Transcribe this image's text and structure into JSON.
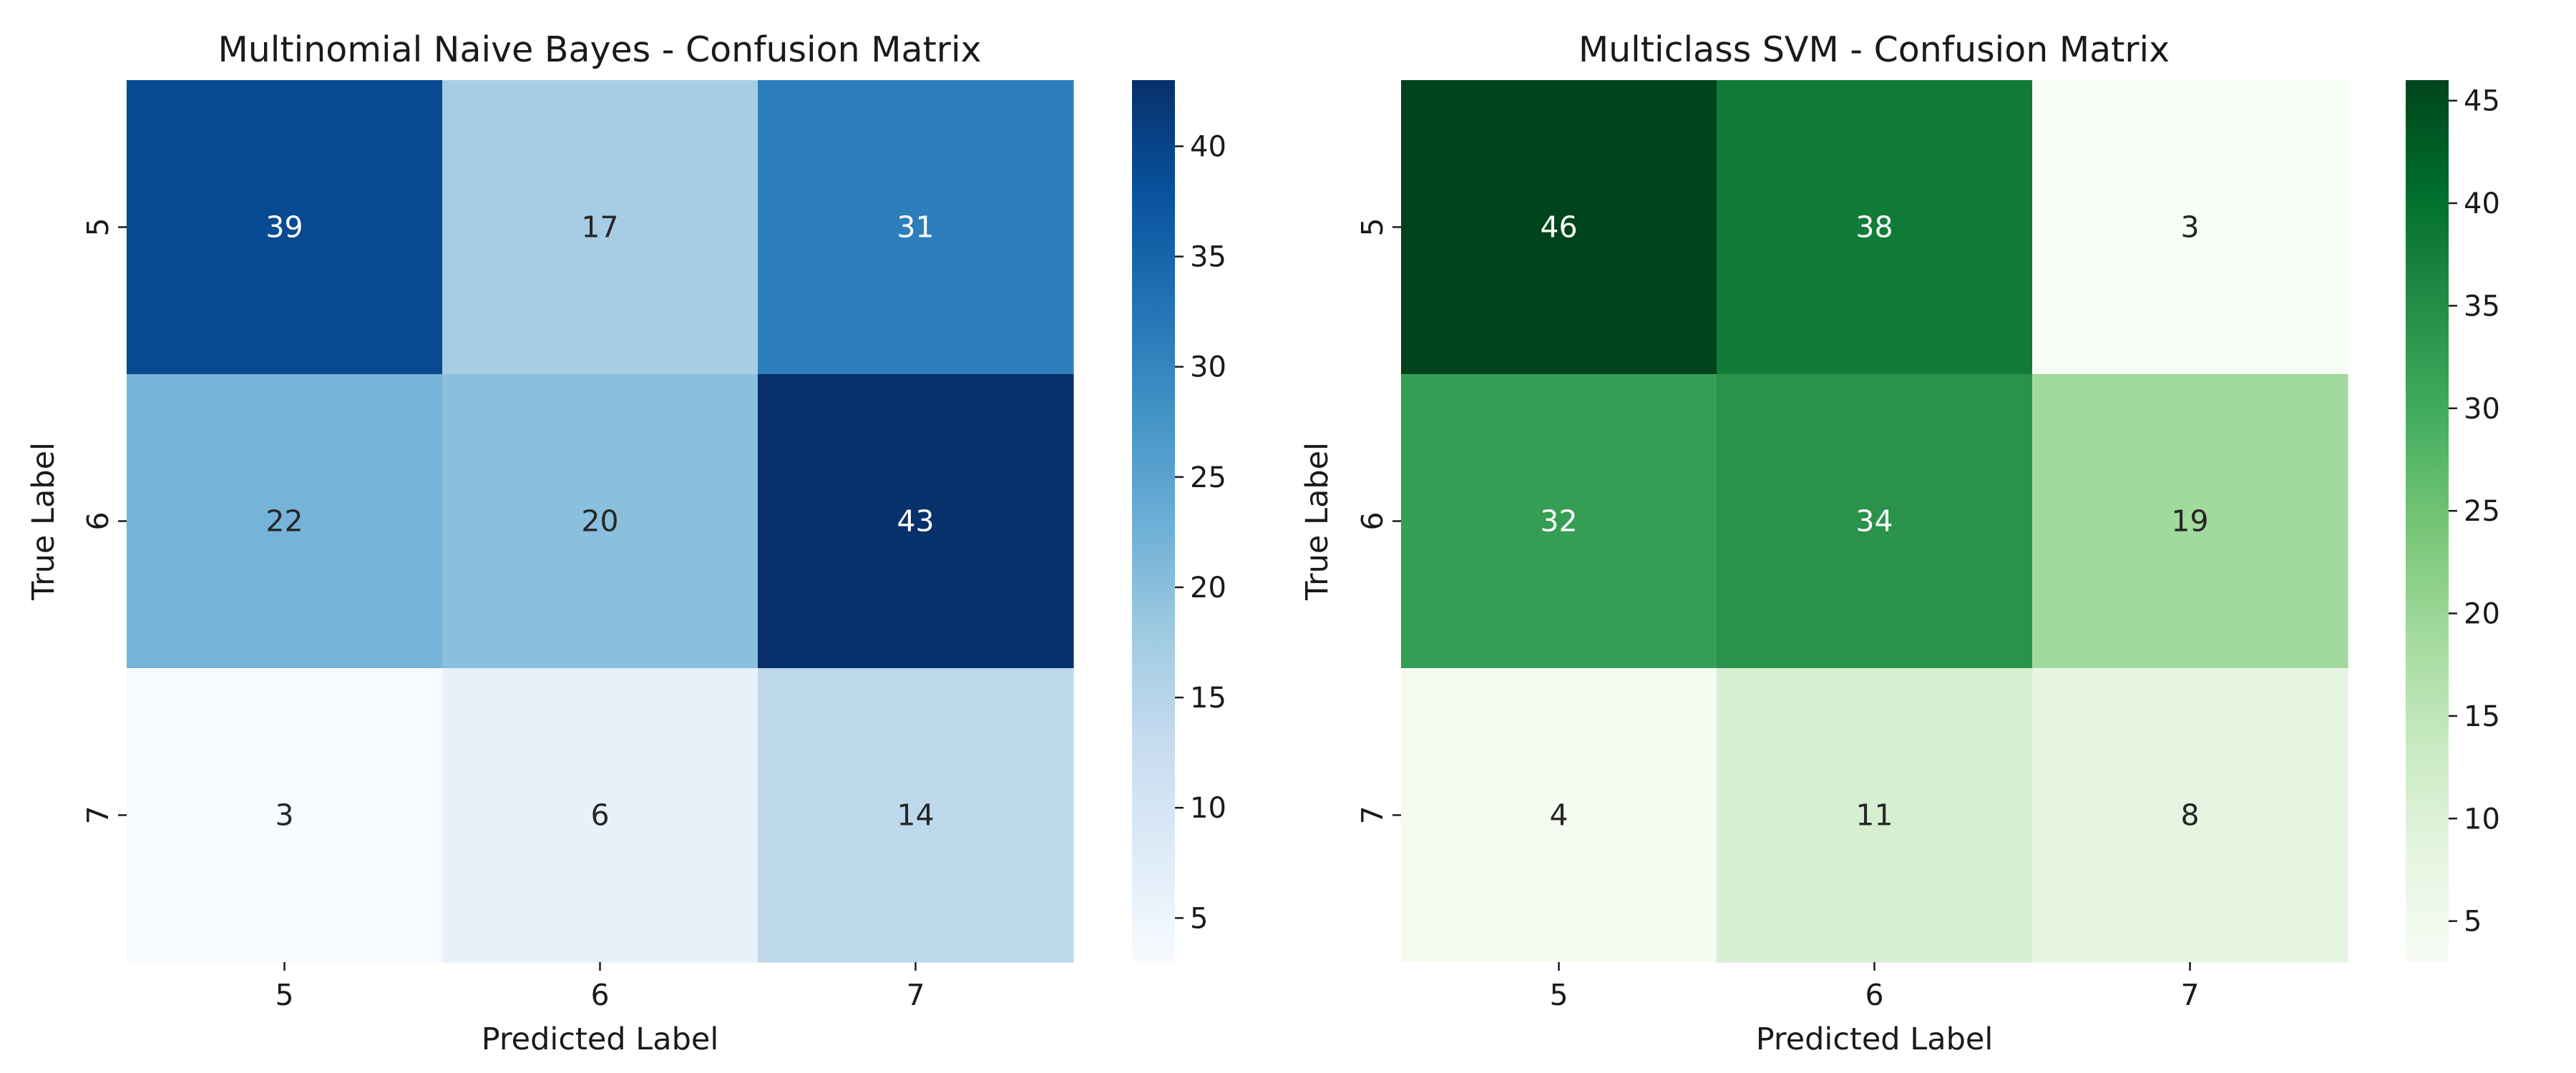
{
  "chart_data": [
    {
      "type": "heatmap",
      "title": "Multinomial Naive Bayes - Confusion Matrix",
      "xlabel": "Predicted Label",
      "ylabel": "True Label",
      "x_categories": [
        "5",
        "6",
        "7"
      ],
      "y_categories": [
        "5",
        "6",
        "7"
      ],
      "values": [
        [
          39,
          17,
          31
        ],
        [
          22,
          20,
          43
        ],
        [
          3,
          6,
          14
        ]
      ],
      "colormap": "Blues",
      "colors": [
        "#f7fbff",
        "#deebf7",
        "#c6dbef",
        "#9ecae1",
        "#6baed6",
        "#4292c6",
        "#2171b5",
        "#08519c",
        "#08306b"
      ],
      "colorbar": {
        "range": [
          3,
          43
        ],
        "ticks": [
          5,
          10,
          15,
          20,
          25,
          30,
          35,
          40
        ]
      },
      "grid": false
    },
    {
      "type": "heatmap",
      "title": "Multiclass SVM - Confusion Matrix",
      "xlabel": "Predicted Label",
      "ylabel": "True Label",
      "x_categories": [
        "5",
        "6",
        "7"
      ],
      "y_categories": [
        "5",
        "6",
        "7"
      ],
      "values": [
        [
          46,
          38,
          3
        ],
        [
          32,
          34,
          19
        ],
        [
          4,
          11,
          8
        ]
      ],
      "colormap": "Greens",
      "colors": [
        "#f7fcf5",
        "#e5f5e0",
        "#c7e9c0",
        "#a1d99b",
        "#74c476",
        "#41ab5d",
        "#238b45",
        "#006d2c",
        "#00441b"
      ],
      "colorbar": {
        "range": [
          3,
          46
        ],
        "ticks": [
          5,
          10,
          15,
          20,
          25,
          30,
          35,
          40,
          45
        ]
      },
      "grid": false
    }
  ]
}
